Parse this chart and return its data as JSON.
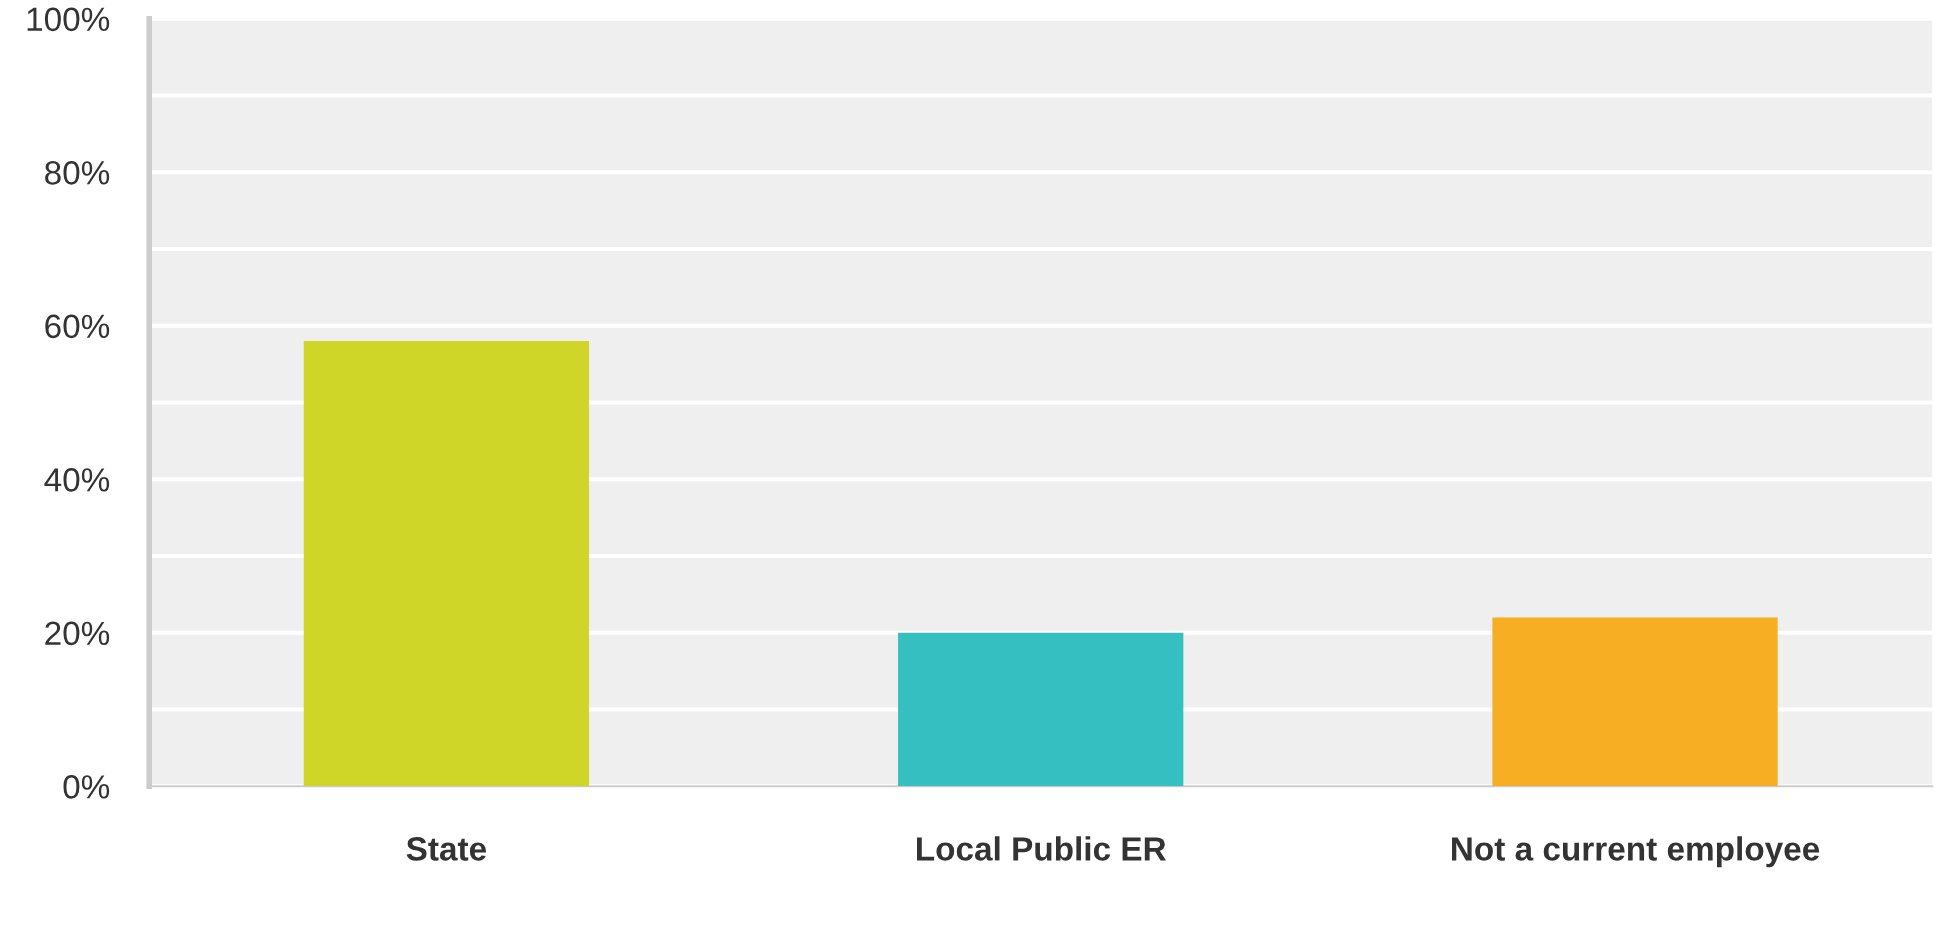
{
  "chart_data": {
    "type": "bar",
    "categories": [
      "State",
      "Local Public ER",
      "Not a current employee"
    ],
    "values": [
      58,
      20,
      22
    ],
    "colors": [
      "#d0d628",
      "#35bfc0",
      "#f7ae22"
    ],
    "ylim": [
      0,
      100
    ],
    "yticks": [
      {
        "value": 0,
        "label": "0%"
      },
      {
        "value": 10,
        "label": null
      },
      {
        "value": 20,
        "label": "20%"
      },
      {
        "value": 30,
        "label": null
      },
      {
        "value": 40,
        "label": "40%"
      },
      {
        "value": 50,
        "label": null
      },
      {
        "value": 60,
        "label": "60%"
      },
      {
        "value": 70,
        "label": null
      },
      {
        "value": 80,
        "label": "80%"
      },
      {
        "value": 90,
        "label": null
      },
      {
        "value": 100,
        "label": "100%"
      }
    ],
    "grid": "y"
  }
}
